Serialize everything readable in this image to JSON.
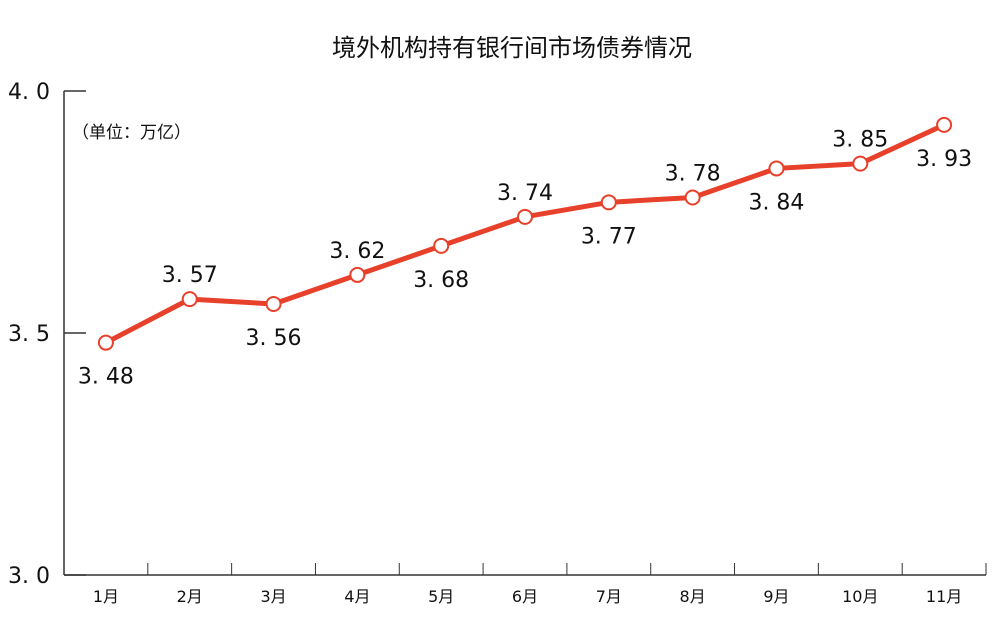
{
  "chart_data": {
    "type": "line",
    "title": "境外机构持有银行间市场债券情况",
    "unit_note": "（单位：万亿）",
    "categories": [
      "1月",
      "2月",
      "3月",
      "4月",
      "5月",
      "6月",
      "7月",
      "8月",
      "9月",
      "10月",
      "11月"
    ],
    "values": [
      3.48,
      3.57,
      3.56,
      3.62,
      3.68,
      3.74,
      3.77,
      3.78,
      3.84,
      3.85,
      3.93
    ],
    "value_labels": [
      "3.48",
      "3.57",
      "3.56",
      "3.62",
      "3.68",
      "3.74",
      "3.77",
      "3.78",
      "3.84",
      "3.85",
      "3.93"
    ],
    "label_positions": [
      "below",
      "above",
      "below",
      "above",
      "below",
      "above",
      "below",
      "above",
      "below",
      "above",
      "below"
    ],
    "ylim": [
      3.0,
      4.0
    ],
    "yticks": [
      "3.0",
      "3.5",
      "4.0"
    ],
    "grid": false,
    "colors": {
      "line": "#e8412b",
      "marker_fill": "#ffffff",
      "axis": "#333333"
    }
  }
}
